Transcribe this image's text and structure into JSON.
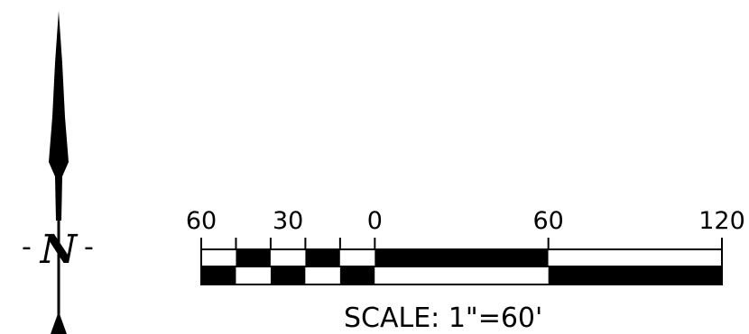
{
  "north_arrow": {
    "letter": "N",
    "icon": "north-arrow-icon",
    "color": "#000000"
  },
  "scale_bar": {
    "tick_labels": [
      {
        "label": "60",
        "value": -60
      },
      {
        "label": "30",
        "value": -30
      },
      {
        "label": "0",
        "value": 0
      },
      {
        "label": "60",
        "value": 60
      },
      {
        "label": "120",
        "value": 120
      }
    ],
    "subdivision_step": 12,
    "range": [
      -60,
      120
    ],
    "units": "feet",
    "text": "SCALE:  1\"=60'",
    "color": "#000000"
  }
}
